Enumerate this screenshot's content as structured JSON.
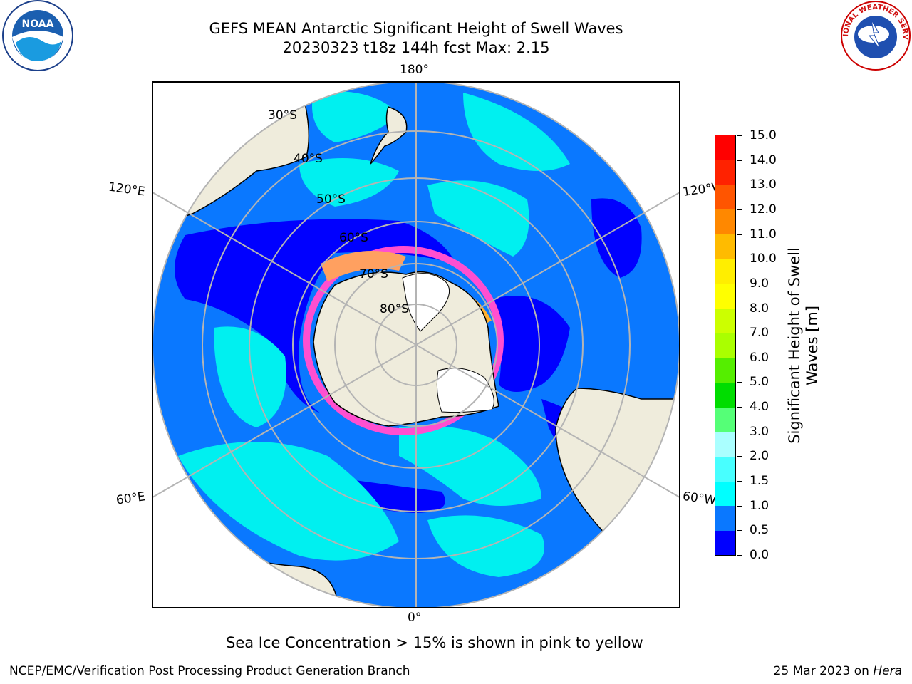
{
  "header": {
    "title_line1": "GEFS MEAN Antarctic Significant Height of Swell Waves",
    "title_line2": "20230323 t18z 144h fcst   Max: 2.15"
  },
  "map": {
    "projection": "south-polar-stereographic",
    "longitude_labels": {
      "top": "180°",
      "bottom": "0°",
      "upper_left": "120°E",
      "lower_left": "60°E",
      "upper_right": "120°W",
      "lower_right": "60°W"
    },
    "latitude_labels": [
      "30°S",
      "40°S",
      "50°S",
      "60°S",
      "70°S",
      "80°S"
    ],
    "colors": {
      "land": "#efecdc",
      "ocean_low": "#0000ff",
      "ocean_mid": "#0a78ff",
      "ocean_high": "#00fafa",
      "sea_ice": "#ff4fd0",
      "antarctic_ice": "#ffffff",
      "graticule": "#b4b4b4"
    }
  },
  "colorbar": {
    "title_line1": "Significant Height of Swell",
    "title_line2": "Waves [m]",
    "ticks": [
      "0.0",
      "0.5",
      "1.0",
      "1.5",
      "2.0",
      "3.0",
      "4.0",
      "5.0",
      "6.0",
      "7.0",
      "8.0",
      "9.0",
      "10.0",
      "11.0",
      "12.0",
      "13.0",
      "14.0",
      "15.0"
    ],
    "colors": [
      "#0000ff",
      "#0a78ff",
      "#00ffff",
      "#48ffff",
      "#aaffff",
      "#55ff77",
      "#00dd00",
      "#55ee00",
      "#aaff00",
      "#ccff00",
      "#ffff00",
      "#ffee00",
      "#ffbb00",
      "#ff8800",
      "#ff5500",
      "#ff2200",
      "#ff0000"
    ]
  },
  "note": "Sea Ice Concentration > 15% is shown in pink to yellow",
  "footer": {
    "left": "NCEP/EMC/Verification Post Processing Product Generation Branch",
    "right_date": "25 Mar 2023 on",
    "right_machine": "Hera"
  },
  "logos": {
    "left": "NOAA",
    "right": "NATIONAL WEATHER SERVICE"
  }
}
